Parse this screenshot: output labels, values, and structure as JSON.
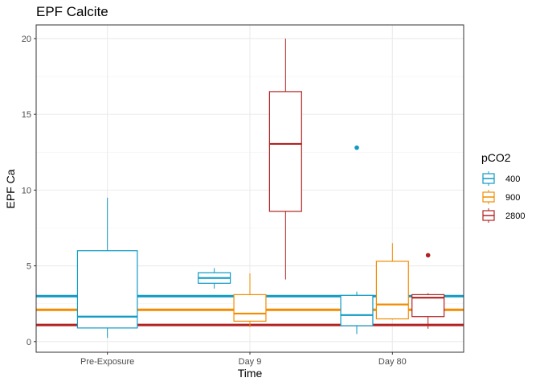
{
  "chart_data": {
    "type": "box",
    "title": "EPF Calcite",
    "xlabel": "Time",
    "ylabel": "EPF Ca",
    "categories": [
      "Pre-Exposure",
      "Day 9",
      "Day 80"
    ],
    "ylim": [
      -0.7,
      20.9
    ],
    "yticks": [
      0,
      5,
      10,
      15,
      20
    ],
    "grid": true,
    "legend": {
      "title": "pCO2",
      "position": "right"
    },
    "series": [
      {
        "name": "400",
        "color": "#0f9ac4",
        "reference_line": 3.0,
        "boxes": [
          {
            "category": "Pre-Exposure",
            "whisker_low": 0.25,
            "q1": 0.9,
            "median": 1.65,
            "q3": 6.0,
            "whisker_high": 9.5,
            "outliers": []
          },
          {
            "category": "Day 9",
            "whisker_low": 3.5,
            "q1": 3.85,
            "median": 4.2,
            "q3": 4.55,
            "whisker_high": 4.85,
            "outliers": []
          },
          {
            "category": "Day 80",
            "whisker_low": 0.5,
            "q1": 1.05,
            "median": 1.75,
            "q3": 3.05,
            "whisker_high": 3.3,
            "outliers": [
              12.8
            ]
          }
        ]
      },
      {
        "name": "900",
        "color": "#f28c00",
        "reference_line": 2.1,
        "boxes": [
          {
            "category": "Day 9",
            "whisker_low": 0.95,
            "q1": 1.35,
            "median": 1.85,
            "q3": 3.1,
            "whisker_high": 4.5,
            "outliers": []
          },
          {
            "category": "Day 80",
            "whisker_low": 1.45,
            "q1": 1.5,
            "median": 2.45,
            "q3": 5.3,
            "whisker_high": 6.5,
            "outliers": []
          }
        ]
      },
      {
        "name": "2800",
        "color": "#b22222",
        "reference_line": 1.1,
        "boxes": [
          {
            "category": "Day 9",
            "whisker_low": 4.1,
            "q1": 8.6,
            "median": 13.05,
            "q3": 16.5,
            "whisker_high": 20.0,
            "outliers": []
          },
          {
            "category": "Day 80",
            "whisker_low": 0.85,
            "q1": 1.65,
            "median": 2.9,
            "q3": 3.1,
            "whisker_high": 3.2,
            "outliers": [
              5.7
            ]
          }
        ]
      }
    ]
  }
}
